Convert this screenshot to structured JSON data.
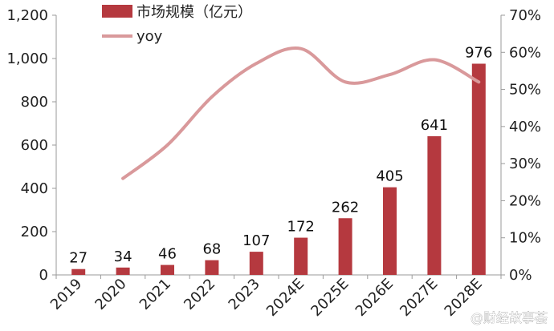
{
  "chart_data": {
    "type": "bar",
    "title": "",
    "xlabel": "",
    "ylabel": "",
    "categories": [
      "2019",
      "2020",
      "2021",
      "2022",
      "2023",
      "2024E",
      "2025E",
      "2026E",
      "2027E",
      "2028E"
    ],
    "series": [
      {
        "name": "市场规模（亿元）",
        "type": "bar",
        "axis": "left",
        "color": "#b5393f",
        "values": [
          27,
          34,
          46,
          68,
          107,
          172,
          262,
          405,
          641,
          976
        ],
        "labels": [
          "27",
          "34",
          "46",
          "68",
          "107",
          "172",
          "262",
          "405",
          "641",
          "976"
        ]
      },
      {
        "name": "yoy",
        "type": "line",
        "axis": "right",
        "color": "#d9999b",
        "smooth": true,
        "values": [
          null,
          0.26,
          0.35,
          0.48,
          0.57,
          0.61,
          0.52,
          0.54,
          0.58,
          0.52
        ]
      }
    ],
    "ylim": [
      0,
      1200
    ],
    "y2lim": [
      0,
      0.7
    ],
    "y_ticks": [
      0,
      200,
      400,
      600,
      800,
      1000,
      1200
    ],
    "y_tick_labels": [
      "0",
      "200",
      "400",
      "600",
      "800",
      "1,000",
      "1,200"
    ],
    "y2_ticks": [
      0,
      0.1,
      0.2,
      0.3,
      0.4,
      0.5,
      0.6,
      0.7
    ],
    "y2_tick_labels": [
      "0%",
      "10%",
      "20%",
      "30%",
      "40%",
      "50%",
      "60%",
      "70%"
    ],
    "grid": false,
    "legend_position": "top-left"
  },
  "watermark": "@财经故事荟"
}
